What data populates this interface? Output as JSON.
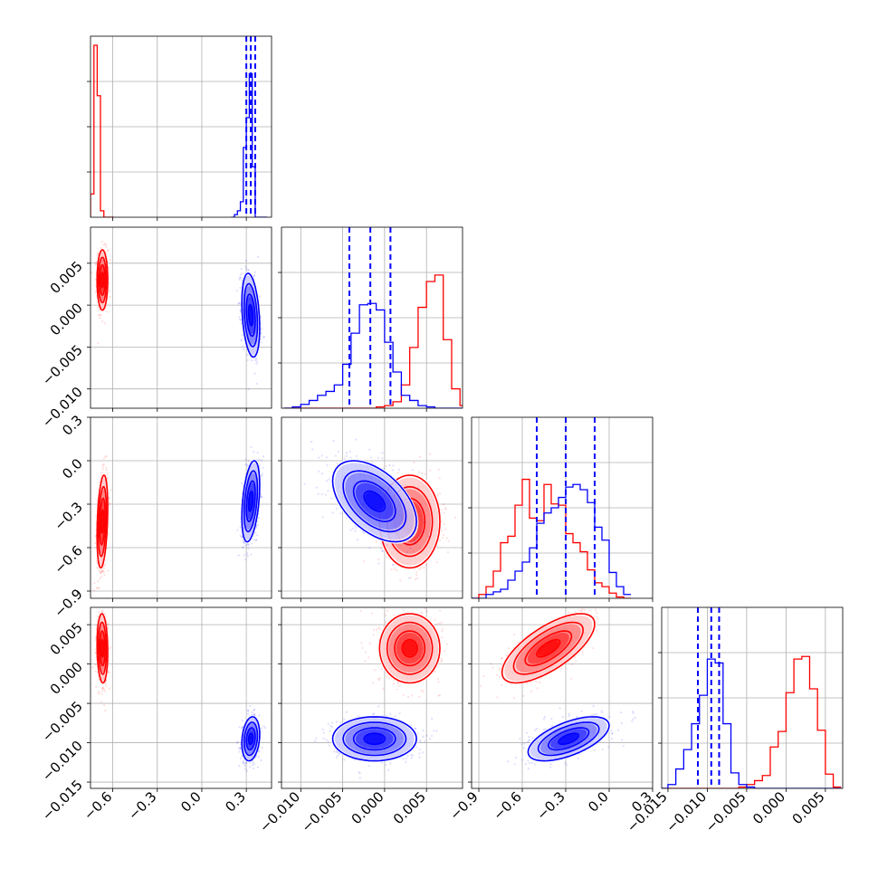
{
  "chart_data": {
    "type": "corner",
    "parameters": 4,
    "colors": {
      "series_a": "#ff0000",
      "series_b": "#0000ff",
      "grid": "#b0b0b0",
      "frame": "#000000"
    },
    "grid": true,
    "series": [
      {
        "color": "red",
        "means": [
          -0.67,
          0.003,
          -0.42,
          0.002
        ],
        "sds": [
          0.018,
          0.0018,
          0.16,
          0.0022
        ],
        "corr": [
          [
            1,
            0,
            0.3,
            -0.1
          ],
          [
            0,
            1,
            0,
            0
          ],
          [
            0.3,
            0,
            1,
            0.7
          ],
          [
            -0.1,
            0,
            0.7,
            1
          ]
        ],
        "hist": [
          {
            "edges": [
              -0.75,
              -0.727,
              -0.705,
              -0.683,
              -0.66,
              -0.637,
              -0.615,
              -0.593
            ],
            "heights": [
              0.18,
              1.33,
              0.94,
              0.05,
              0.0,
              0.0,
              0.0
            ]
          },
          {
            "edges": [
              -0.012,
              -0.011,
              -0.01,
              -0.009,
              -0.008,
              -0.007,
              -0.006,
              -0.005,
              -0.004,
              -0.003,
              -0.002,
              -0.001,
              0.0,
              0.001,
              0.002,
              0.003,
              0.004,
              0.005,
              0.006,
              0.007,
              0.008,
              0.009,
              0.01
            ],
            "heights": [
              0,
              0,
              0,
              0,
              0,
              0,
              0,
              0,
              0,
              0,
              0,
              0.01,
              0.02,
              0.05,
              0.18,
              0.47,
              0.78,
              0.98,
              1.03,
              0.53,
              0.15,
              0.02
            ]
          },
          {
            "edges": [
              -0.95,
              -0.9,
              -0.85,
              -0.8,
              -0.75,
              -0.7,
              -0.65,
              -0.6,
              -0.55,
              -0.5,
              -0.45,
              -0.4,
              -0.35,
              -0.3,
              -0.25,
              -0.2,
              -0.15,
              -0.1,
              -0.05,
              0.0,
              0.05,
              0.1,
              0.15
            ],
            "heights": [
              0,
              0.03,
              0.09,
              0.21,
              0.43,
              0.48,
              0.72,
              0.92,
              0.62,
              0.6,
              0.88,
              0.73,
              0.72,
              0.5,
              0.43,
              0.36,
              0.22,
              0.12,
              0.09,
              0.04,
              0.01,
              0.0
            ]
          },
          {
            "edges": [
              -0.016,
              -0.015,
              -0.014,
              -0.013,
              -0.012,
              -0.011,
              -0.01,
              -0.009,
              -0.008,
              -0.007,
              -0.006,
              -0.005,
              -0.004,
              -0.003,
              -0.002,
              -0.001,
              0.0,
              0.001,
              0.002,
              0.003,
              0.004,
              0.005,
              0.006,
              0.007
            ],
            "heights": [
              0,
              0,
              0,
              0,
              0,
              0,
              0,
              0,
              0,
              0,
              0.01,
              0.03,
              0.06,
              0.1,
              0.32,
              0.44,
              0.74,
              1.0,
              1.02,
              0.77,
              0.45,
              0.11,
              0.01
            ]
          }
        ]
      },
      {
        "color": "blue",
        "means": [
          0.33,
          -0.0012,
          -0.28,
          -0.0095
        ],
        "sds": [
          0.03,
          0.0025,
          0.14,
          0.0014
        ],
        "corr": [
          [
            1,
            -0.3,
            0.4,
            0.2
          ],
          [
            -0.3,
            1,
            -0.5,
            0
          ],
          [
            0.4,
            -0.5,
            1,
            0.6
          ],
          [
            0.2,
            0,
            0.6,
            1
          ]
        ],
        "quantile_lines": [
          [
            0.3,
            0.33,
            0.36
          ],
          [
            -0.0042,
            -0.0017,
            0.0007
          ],
          [
            -0.5,
            -0.3,
            -0.1
          ],
          [
            -0.0112,
            -0.0095,
            -0.0085
          ]
        ],
        "hist": [
          {
            "edges": [
              0.2,
              0.22,
              0.24,
              0.26,
              0.28,
              0.3,
              0.32,
              0.34,
              0.36,
              0.38,
              0.4,
              0.42,
              0.44
            ],
            "heights": [
              0.0,
              0.02,
              0.05,
              0.12,
              0.54,
              0.77,
              1.11,
              0.39,
              0.0,
              0.0,
              0.0,
              0.0
            ]
          },
          {
            "edges": [
              -0.012,
              -0.011,
              -0.01,
              -0.009,
              -0.008,
              -0.007,
              -0.006,
              -0.005,
              -0.004,
              -0.003,
              -0.002,
              -0.001,
              0.0,
              0.001,
              0.002,
              0.003,
              0.004,
              0.005,
              0.006,
              0.007,
              0.008,
              0.009,
              0.01
            ],
            "heights": [
              0,
              0.01,
              0.03,
              0.06,
              0.1,
              0.13,
              0.18,
              0.34,
              0.58,
              0.8,
              0.81,
              0.76,
              0.51,
              0.28,
              0.1,
              0.06,
              0.02,
              0.01,
              0,
              0,
              0,
              0
            ]
          },
          {
            "edges": [
              -0.95,
              -0.9,
              -0.85,
              -0.8,
              -0.75,
              -0.7,
              -0.65,
              -0.6,
              -0.55,
              -0.5,
              -0.45,
              -0.4,
              -0.35,
              -0.3,
              -0.25,
              -0.2,
              -0.15,
              -0.1,
              -0.05,
              0.0,
              0.05,
              0.1,
              0.15
            ],
            "heights": [
              0,
              0,
              0.03,
              0.05,
              0.07,
              0.14,
              0.21,
              0.28,
              0.39,
              0.58,
              0.66,
              0.7,
              0.78,
              0.86,
              0.88,
              0.84,
              0.74,
              0.55,
              0.45,
              0.2,
              0.09,
              0.03
            ]
          },
          {
            "edges": [
              -0.016,
              -0.015,
              -0.014,
              -0.013,
              -0.012,
              -0.011,
              -0.01,
              -0.009,
              -0.008,
              -0.007,
              -0.006,
              -0.005,
              -0.004,
              -0.003,
              -0.002,
              -0.001,
              0.0,
              0.001,
              0.002,
              0.003,
              0.004,
              0.005,
              0.006,
              0.007
            ],
            "heights": [
              0.0,
              0.03,
              0.15,
              0.3,
              0.5,
              0.72,
              1.0,
              0.97,
              0.5,
              0.12,
              0.03,
              0.01,
              0,
              0,
              0,
              0,
              0,
              0,
              0,
              0,
              0,
              0,
              0
            ]
          }
        ]
      }
    ],
    "axes": [
      {
        "range": [
          -0.75,
          0.47
        ],
        "ticks": [
          -0.6,
          -0.3,
          0.0,
          0.3
        ],
        "tick_labels": [
          "−0.6",
          "−0.3",
          "0.0",
          "0.3"
        ]
      },
      {
        "range": [
          -0.0123,
          0.0093
        ],
        "ticks": [
          -0.01,
          -0.005,
          0.0,
          0.005
        ],
        "tick_labels": [
          "−0.010",
          "−0.005",
          "0.000",
          "0.005"
        ]
      },
      {
        "range": [
          -0.95,
          0.3
        ],
        "ticks": [
          -0.9,
          -0.6,
          -0.3,
          0.0,
          0.3
        ],
        "tick_labels": [
          "−0.9",
          "−0.6",
          "−0.3",
          "0.0",
          "0.3"
        ]
      },
      {
        "range": [
          -0.0158,
          0.0072
        ],
        "ticks": [
          -0.015,
          -0.01,
          -0.005,
          0.0,
          0.005
        ],
        "tick_labels": [
          "−0.015",
          "−0.010",
          "−0.005",
          "0.000",
          "0.005"
        ]
      }
    ],
    "left_axis_labels": {
      "row1": [
        "0.005",
        "0.000",
        "−0.005",
        "−0.010"
      ],
      "row2": [
        "0.3",
        "0.0",
        "−0.3",
        "−0.6",
        "−0.9"
      ],
      "row3": [
        "0.005",
        "0.000",
        "−0.005",
        "−0.010",
        "−0.015"
      ]
    },
    "bottom_axis_labels": {
      "col0": [
        "−0.6",
        "−0.3",
        "0.0",
        "0.3"
      ],
      "col1": [
        "−0.010",
        "−0.005",
        "0.000",
        "0.005"
      ],
      "col2": [
        "−0.9",
        "−0.6",
        "−0.3",
        "0.0",
        "0.3"
      ],
      "col3": [
        "−0.015",
        "−0.010",
        "−0.005",
        "0.000",
        "0.005"
      ]
    }
  }
}
